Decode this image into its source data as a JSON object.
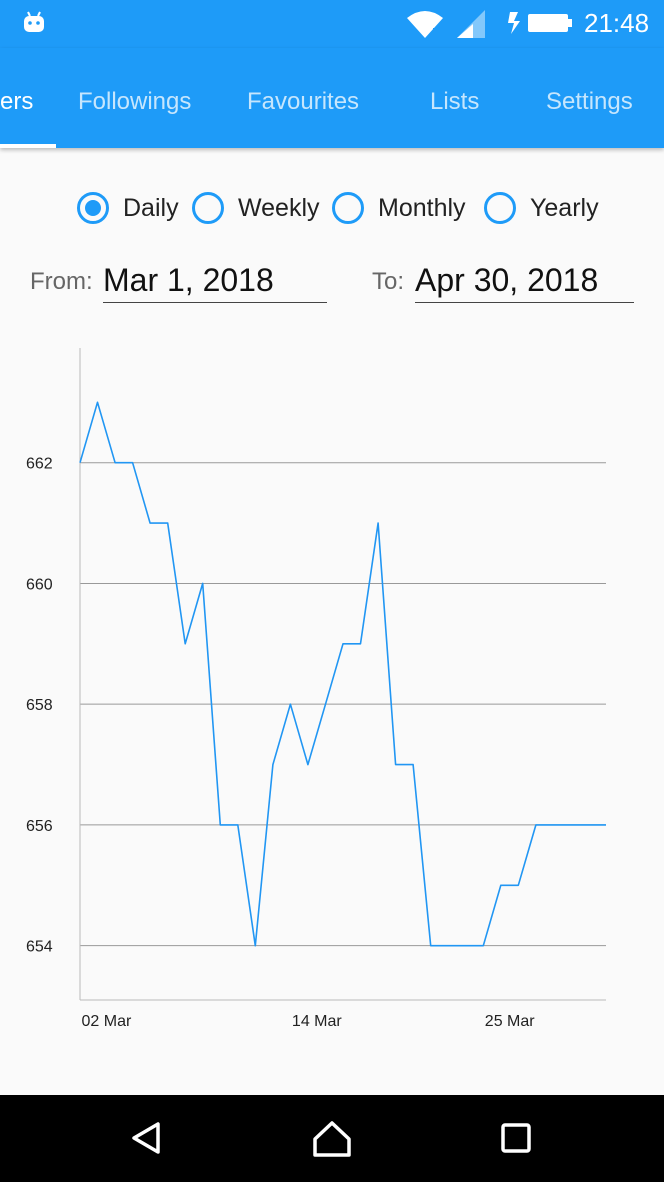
{
  "status": {
    "time": "21:48",
    "icons": [
      "android-icon",
      "wifi-icon",
      "signal-icon",
      "charging-icon",
      "battery-icon"
    ]
  },
  "tabs": [
    {
      "label": "ers",
      "active": true
    },
    {
      "label": "Followings",
      "active": false
    },
    {
      "label": "Favourites",
      "active": false
    },
    {
      "label": "Lists",
      "active": false
    },
    {
      "label": "Settings",
      "active": false
    }
  ],
  "period": {
    "options": [
      "Daily",
      "Weekly",
      "Monthly",
      "Yearly"
    ],
    "selected": "Daily"
  },
  "date_range": {
    "from_label": "From:",
    "from_value": "Mar 1, 2018",
    "to_label": "To:",
    "to_value": "Apr 30, 2018"
  },
  "colors": {
    "accent": "#1e9bf8",
    "line": "#2196f3",
    "grid": "#999999"
  },
  "chart_data": {
    "type": "line",
    "x_tick_labels": [
      "02 Mar",
      "14 Mar",
      "25 Mar"
    ],
    "x_ticks_at": [
      2,
      14,
      25
    ],
    "y_tick_labels": [
      "654",
      "656",
      "658",
      "660",
      "662"
    ],
    "ylim": [
      653.1,
      663.9
    ],
    "xlim": [
      1,
      31
    ],
    "grid": "horizontal",
    "series": [
      {
        "x": [
          1,
          2,
          3,
          4,
          5,
          6,
          7,
          8,
          9,
          10,
          11,
          12,
          13,
          14,
          15,
          16,
          17,
          18,
          19,
          20,
          21,
          22,
          23,
          24,
          25,
          26,
          27,
          28,
          29,
          30,
          31
        ],
        "values": [
          662,
          663,
          662,
          662,
          661,
          661,
          659,
          660,
          656,
          656,
          654,
          657,
          658,
          657,
          658,
          659,
          659,
          661,
          657,
          657,
          654,
          654,
          654,
          654,
          655,
          655,
          656,
          656,
          656,
          656,
          656
        ]
      }
    ]
  },
  "nav": [
    "back-icon",
    "home-icon",
    "recents-icon"
  ]
}
